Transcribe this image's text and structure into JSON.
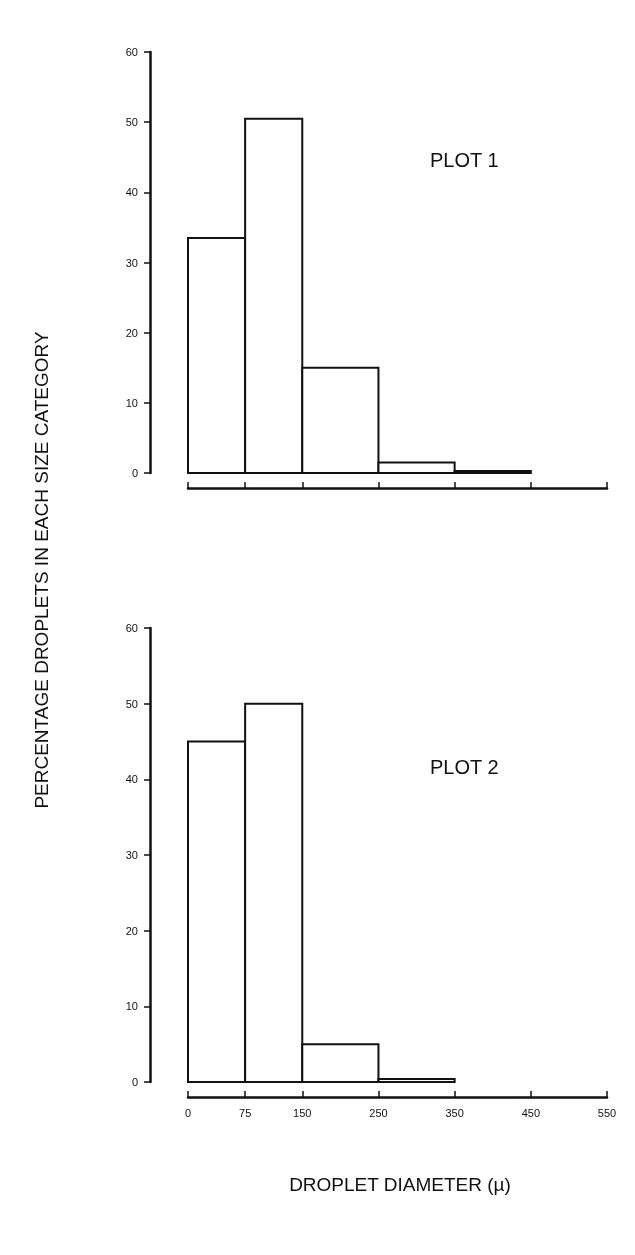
{
  "chart_data": [
    {
      "type": "histogram",
      "title": "PLOT 1",
      "ylabel": "PERCENTAGE DROPLETS IN EACH SIZE CATEGORY",
      "bins": [
        0,
        75,
        150,
        250,
        350,
        450
      ],
      "values": [
        33.5,
        50.5,
        15,
        1.5,
        0.3
      ],
      "xlim": [
        0,
        550
      ],
      "xticks": [
        0,
        75,
        150,
        250,
        350,
        450,
        550
      ],
      "ylim": [
        0,
        60
      ],
      "yticks": [
        0,
        10,
        20,
        30,
        40,
        50,
        60
      ],
      "tick_labels": "y",
      "grid": false
    },
    {
      "type": "histogram",
      "title": "PLOT 2",
      "xlabel": "DROPLET DIAMETER (µ)",
      "bins": [
        0,
        75,
        150,
        250,
        350
      ],
      "values": [
        45,
        50,
        5,
        0.4
      ],
      "xlim": [
        0,
        550
      ],
      "xticks": [
        0,
        75,
        150,
        250,
        350,
        450,
        550
      ],
      "ylim": [
        0,
        60
      ],
      "yticks": [
        0,
        10,
        20,
        30,
        40,
        50,
        60
      ],
      "grid": false
    }
  ]
}
